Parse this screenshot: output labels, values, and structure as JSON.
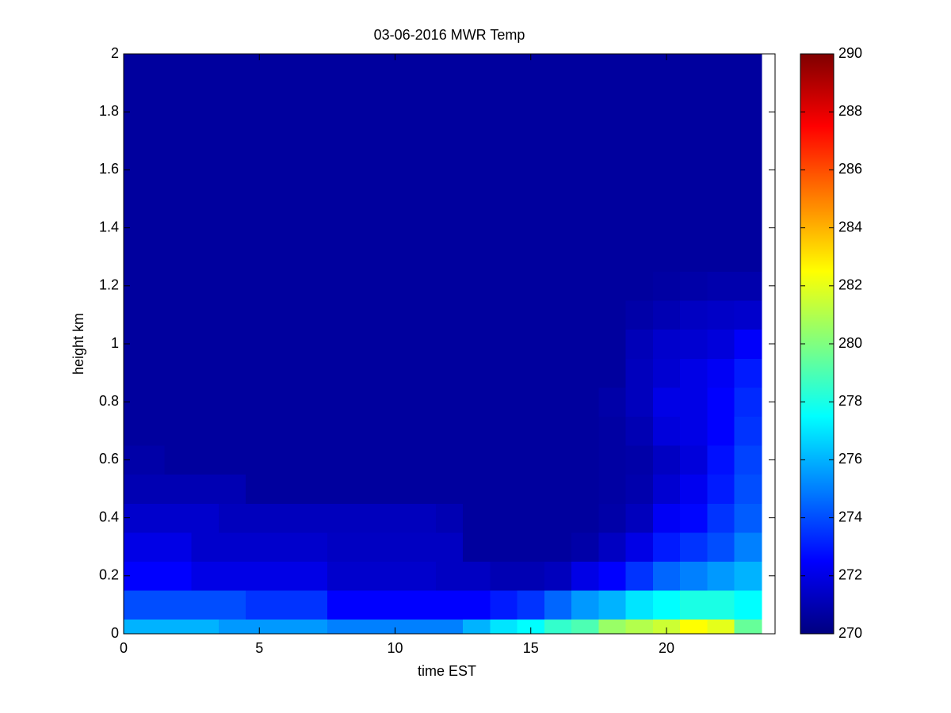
{
  "chart_data": {
    "type": "heatmap",
    "title": "03-06-2016 MWR Temp",
    "x_label": "time EST",
    "y_label": "height km",
    "colormap": "jet",
    "x": [
      0,
      1,
      2,
      3,
      4,
      5,
      6,
      7,
      8,
      9,
      10,
      11,
      12,
      13,
      14,
      15,
      16,
      17,
      18,
      19,
      20,
      21,
      22,
      23
    ],
    "y": [
      0,
      0.1,
      0.2,
      0.3,
      0.4,
      0.5,
      0.6,
      0.7,
      0.8,
      0.9,
      1,
      1.1,
      1.2,
      1.3,
      1.4,
      1.5,
      1.6,
      1.7,
      1.8,
      1.9,
      2
    ],
    "z": [
      [
        276,
        276,
        276,
        276,
        275.5,
        275.5,
        275.5,
        275.5,
        275,
        275,
        275,
        275,
        275,
        276,
        277,
        277.5,
        278.5,
        279,
        280.5,
        281,
        281.5,
        282.5,
        282,
        279.5
      ],
      [
        274,
        274,
        274,
        274,
        274,
        273.5,
        273.5,
        273.5,
        272.5,
        272.5,
        272.5,
        272.5,
        272.5,
        272.5,
        273,
        273.5,
        274.5,
        275.5,
        276,
        277,
        277.5,
        278,
        278,
        277.5
      ],
      [
        272.5,
        272.5,
        272.5,
        272,
        272,
        272,
        272,
        272,
        271.5,
        271.5,
        271.5,
        271.5,
        271.3,
        271.3,
        271,
        271,
        271.2,
        272,
        272.5,
        273.5,
        274.5,
        275,
        275.5,
        276
      ],
      [
        272,
        272,
        272,
        271.5,
        271.5,
        271.5,
        271.5,
        271.5,
        271.3,
        271.3,
        271.3,
        271.3,
        271.3,
        270.6,
        270.6,
        270.6,
        270.6,
        270.8,
        271.3,
        272,
        273,
        273.5,
        274,
        275
      ],
      [
        271.5,
        271.5,
        271.5,
        271.5,
        271.2,
        271.2,
        271.2,
        271.2,
        271.2,
        271.2,
        271.2,
        271.2,
        271,
        270.6,
        270.6,
        270.6,
        270.6,
        270.6,
        270.8,
        271.2,
        272.3,
        272.6,
        273.5,
        274.3
      ],
      [
        271,
        271,
        271,
        271,
        271,
        270.6,
        270.6,
        270.6,
        270.6,
        270.6,
        270.6,
        270.6,
        270.6,
        270.6,
        270.6,
        270.6,
        270.6,
        270.6,
        270.7,
        270.9,
        271.6,
        272.2,
        273,
        274
      ],
      [
        270.8,
        270.8,
        270.6,
        270.6,
        270.6,
        270.6,
        270.6,
        270.6,
        270.6,
        270.6,
        270.6,
        270.6,
        270.6,
        270.6,
        270.6,
        270.6,
        270.6,
        270.6,
        270.7,
        270.8,
        271.3,
        271.8,
        272.8,
        273.8
      ],
      [
        270.6,
        270.6,
        270.6,
        270.6,
        270.6,
        270.6,
        270.6,
        270.6,
        270.6,
        270.6,
        270.6,
        270.6,
        270.6,
        270.6,
        270.6,
        270.6,
        270.6,
        270.6,
        270.7,
        271,
        271.8,
        272,
        272.5,
        273.5
      ],
      [
        270.6,
        270.6,
        270.6,
        270.6,
        270.6,
        270.6,
        270.6,
        270.6,
        270.6,
        270.6,
        270.6,
        270.6,
        270.6,
        270.6,
        270.6,
        270.6,
        270.6,
        270.6,
        270.8,
        271.2,
        272,
        272,
        272.5,
        273.3
      ],
      [
        270.6,
        270.6,
        270.6,
        270.6,
        270.6,
        270.6,
        270.6,
        270.6,
        270.6,
        270.6,
        270.6,
        270.6,
        270.6,
        270.6,
        270.6,
        270.6,
        270.6,
        270.6,
        270.6,
        271.2,
        271.6,
        272,
        272.3,
        273
      ],
      [
        270.6,
        270.6,
        270.6,
        270.6,
        270.6,
        270.6,
        270.6,
        270.6,
        270.6,
        270.6,
        270.6,
        270.6,
        270.6,
        270.6,
        270.6,
        270.6,
        270.6,
        270.6,
        270.6,
        271.1,
        271.5,
        271.6,
        271.8,
        272.4
      ],
      [
        270.6,
        270.6,
        270.6,
        270.6,
        270.6,
        270.6,
        270.6,
        270.6,
        270.6,
        270.6,
        270.6,
        270.6,
        270.6,
        270.6,
        270.6,
        270.6,
        270.6,
        270.6,
        270.6,
        270.8,
        271,
        271.3,
        271.4,
        271.5
      ],
      [
        270.6,
        270.6,
        270.6,
        270.6,
        270.6,
        270.6,
        270.6,
        270.6,
        270.6,
        270.6,
        270.6,
        270.6,
        270.6,
        270.6,
        270.6,
        270.6,
        270.6,
        270.6,
        270.6,
        270.6,
        270.7,
        270.8,
        270.9,
        270.9
      ],
      [
        270.6,
        270.6,
        270.6,
        270.6,
        270.6,
        270.6,
        270.6,
        270.6,
        270.6,
        270.6,
        270.6,
        270.6,
        270.6,
        270.6,
        270.6,
        270.6,
        270.6,
        270.6,
        270.6,
        270.6,
        270.6,
        270.6,
        270.6,
        270.6
      ],
      [
        270.6,
        270.6,
        270.6,
        270.6,
        270.6,
        270.6,
        270.6,
        270.6,
        270.6,
        270.6,
        270.6,
        270.6,
        270.6,
        270.6,
        270.6,
        270.6,
        270.6,
        270.6,
        270.6,
        270.6,
        270.6,
        270.6,
        270.6,
        270.6
      ],
      [
        270.6,
        270.6,
        270.6,
        270.6,
        270.6,
        270.6,
        270.6,
        270.6,
        270.6,
        270.6,
        270.6,
        270.6,
        270.6,
        270.6,
        270.6,
        270.6,
        270.6,
        270.6,
        270.6,
        270.6,
        270.6,
        270.6,
        270.6,
        270.6
      ],
      [
        270.6,
        270.6,
        270.6,
        270.6,
        270.6,
        270.6,
        270.6,
        270.6,
        270.6,
        270.6,
        270.6,
        270.6,
        270.6,
        270.6,
        270.6,
        270.6,
        270.6,
        270.6,
        270.6,
        270.6,
        270.6,
        270.6,
        270.6,
        270.6
      ],
      [
        270.6,
        270.6,
        270.6,
        270.6,
        270.6,
        270.6,
        270.6,
        270.6,
        270.6,
        270.6,
        270.6,
        270.6,
        270.6,
        270.6,
        270.6,
        270.6,
        270.6,
        270.6,
        270.6,
        270.6,
        270.6,
        270.6,
        270.6,
        270.6
      ],
      [
        270.6,
        270.6,
        270.6,
        270.6,
        270.6,
        270.6,
        270.6,
        270.6,
        270.6,
        270.6,
        270.6,
        270.6,
        270.6,
        270.6,
        270.6,
        270.6,
        270.6,
        270.6,
        270.6,
        270.6,
        270.6,
        270.6,
        270.6,
        270.6
      ],
      [
        270.6,
        270.6,
        270.6,
        270.6,
        270.6,
        270.6,
        270.6,
        270.6,
        270.6,
        270.6,
        270.6,
        270.6,
        270.6,
        270.6,
        270.6,
        270.6,
        270.6,
        270.6,
        270.6,
        270.6,
        270.6,
        270.6,
        270.6,
        270.6
      ],
      [
        270.6,
        270.6,
        270.6,
        270.6,
        270.6,
        270.6,
        270.6,
        270.6,
        270.6,
        270.6,
        270.6,
        270.6,
        270.6,
        270.6,
        270.6,
        270.6,
        270.6,
        270.6,
        270.6,
        270.6,
        270.6,
        270.6,
        270.6,
        270.6
      ]
    ],
    "xlim": [
      0,
      24
    ],
    "ylim": [
      0,
      2
    ],
    "xticks": [
      0,
      5,
      10,
      15,
      20
    ],
    "yticks": [
      0,
      0.2,
      0.4,
      0.6,
      0.8,
      1,
      1.2,
      1.4,
      1.6,
      1.8,
      2
    ],
    "clim": [
      270,
      290
    ],
    "cticks": [
      270,
      272,
      274,
      276,
      278,
      280,
      282,
      284,
      286,
      288,
      290
    ]
  }
}
